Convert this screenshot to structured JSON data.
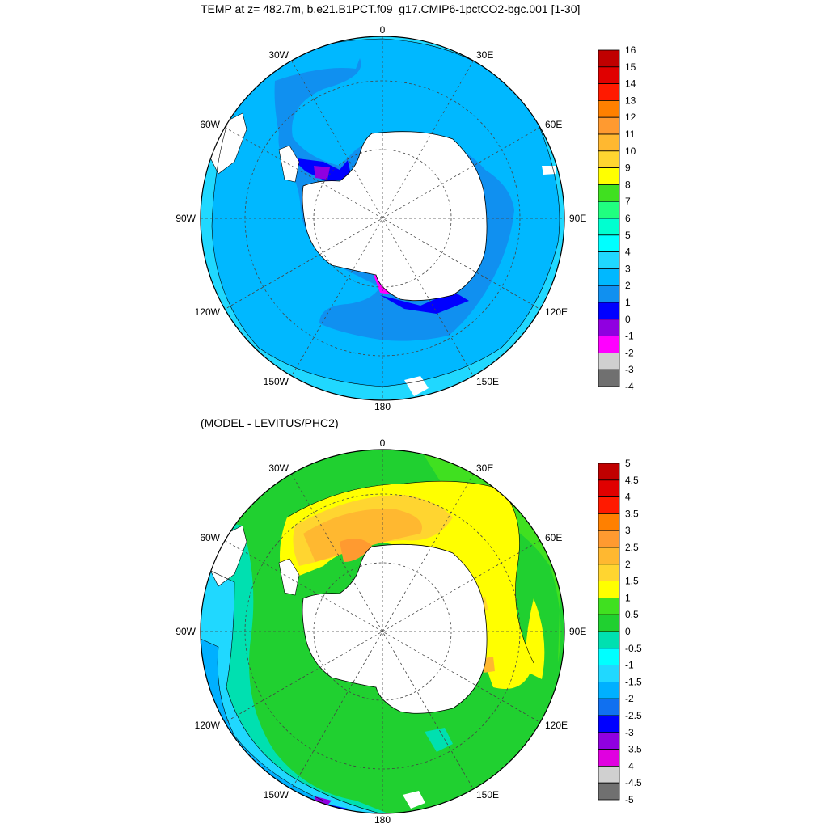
{
  "panel1": {
    "title": "TEMP at z= 482.7m, b.e21.B1PCT.f09_g17.CMIP6-1pctCO2-bgc.001 [1-30]",
    "colorbar": {
      "levels": [
        "16",
        "15",
        "14",
        "13",
        "12",
        "11",
        "10",
        "9",
        "8",
        "7",
        "6",
        "5",
        "4",
        "3",
        "2",
        "1",
        "0",
        "-1",
        "-2",
        "-3",
        "-4"
      ],
      "colors": [
        "#c00000",
        "#e00000",
        "#ff1a00",
        "#ff8000",
        "#ff9a30",
        "#ffb830",
        "#ffd530",
        "#ffff00",
        "#40e020",
        "#20ff80",
        "#00ffd0",
        "#00ffff",
        "#20d8ff",
        "#00b8ff",
        "#1090f0",
        "#0000ff",
        "#9000e0",
        "#ff00ff",
        "#d0d0d0",
        "#707070"
      ]
    }
  },
  "panel2": {
    "title": "(MODEL - LEVITUS/PHC2)",
    "colorbar": {
      "levels": [
        "5",
        "4.5",
        "4",
        "3.5",
        "3",
        "2.5",
        "2",
        "1.5",
        "1",
        "0.5",
        "0",
        "-0.5",
        "-1",
        "-1.5",
        "-2",
        "-2.5",
        "-3",
        "-3.5",
        "-4",
        "-4.5",
        "-5"
      ],
      "colors": [
        "#c00000",
        "#e00000",
        "#ff1a00",
        "#ff8000",
        "#ff9a30",
        "#ffb830",
        "#ffd530",
        "#ffff00",
        "#40e020",
        "#20d030",
        "#00e0b0",
        "#00ffff",
        "#20d8ff",
        "#00b0ff",
        "#1070f0",
        "#0000ff",
        "#9000e0",
        "#e000e0",
        "#d0d0d0",
        "#707070"
      ]
    }
  },
  "map_labels": {
    "top": "0",
    "bottom": "180",
    "left": "90W",
    "right": "90E",
    "upper_left": "30W",
    "upper_right": "30E",
    "mid_upper_left": "60W",
    "mid_upper_right": "60E",
    "mid_lower_left": "120W",
    "mid_lower_right": "120E",
    "lower_left": "150W",
    "lower_right": "150E"
  }
}
